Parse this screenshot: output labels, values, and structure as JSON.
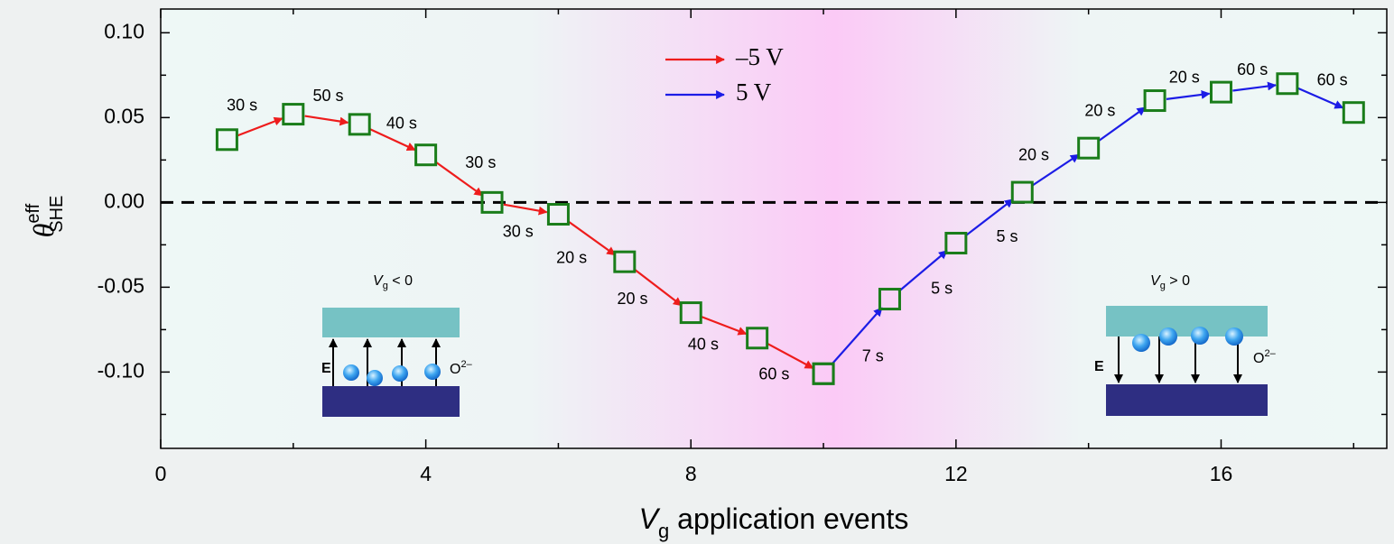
{
  "chart_data": {
    "type": "arrow-path",
    "x_label": {
      "symbol": "V",
      "sub": "g",
      "text": " application events"
    },
    "y_label": {
      "symbol": "θ",
      "sup": "eff",
      "sub": "SHE"
    },
    "xlim": [
      0,
      18.5
    ],
    "xticks": [
      0,
      4,
      8,
      12,
      16
    ],
    "xminor": [
      2,
      6,
      10,
      14,
      18
    ],
    "ylim": [
      -0.145,
      0.114
    ],
    "yticks": [
      {
        "value": -0.1,
        "label": "-0.10"
      },
      {
        "value": -0.05,
        "label": "-0.05"
      },
      {
        "value": 0,
        "label": "0.00"
      },
      {
        "value": 0.05,
        "label": "0.05"
      },
      {
        "value": 0.1,
        "label": "0.10"
      }
    ],
    "yminor": [
      -0.125,
      -0.075,
      -0.025,
      0.025,
      0.075
    ],
    "grid": false,
    "reference_line": {
      "y": 0,
      "style": "dashed"
    },
    "marker_color": "#1a7d1a",
    "legend": "upper center",
    "series": [
      {
        "name": "–5 V",
        "color": "#ee1c1c",
        "x": [
          1,
          2,
          3,
          4,
          5,
          6,
          7,
          8,
          9,
          10
        ],
        "values": [
          0.037,
          0.052,
          0.046,
          0.028,
          0.0,
          -0.007,
          -0.035,
          -0.065,
          -0.08,
          -0.101
        ],
        "step_labels": [
          "30 s",
          "50 s",
          "40 s",
          "30 s",
          "30 s",
          "20 s",
          "20 s",
          "40 s",
          "60 s"
        ]
      },
      {
        "name": "5 V",
        "color": "#1c1ce6",
        "x": [
          10,
          11,
          12,
          13,
          14,
          15,
          16,
          17,
          18
        ],
        "values": [
          -0.101,
          -0.057,
          -0.024,
          0.006,
          0.032,
          0.06,
          0.065,
          0.07,
          0.053
        ],
        "step_labels": [
          "7 s",
          "5 s",
          "5 s",
          "20 s",
          "20 s",
          "20 s",
          "60 s",
          "60 s"
        ]
      }
    ],
    "insets": [
      {
        "symbol": "V",
        "sub": "g",
        "relation": " < 0",
        "field": "E",
        "ion": "O",
        "ion_charge": "2–"
      },
      {
        "symbol": "V",
        "sub": "g",
        "relation": " > 0",
        "field": "E",
        "ion": "O",
        "ion_charge": "2–"
      }
    ]
  }
}
